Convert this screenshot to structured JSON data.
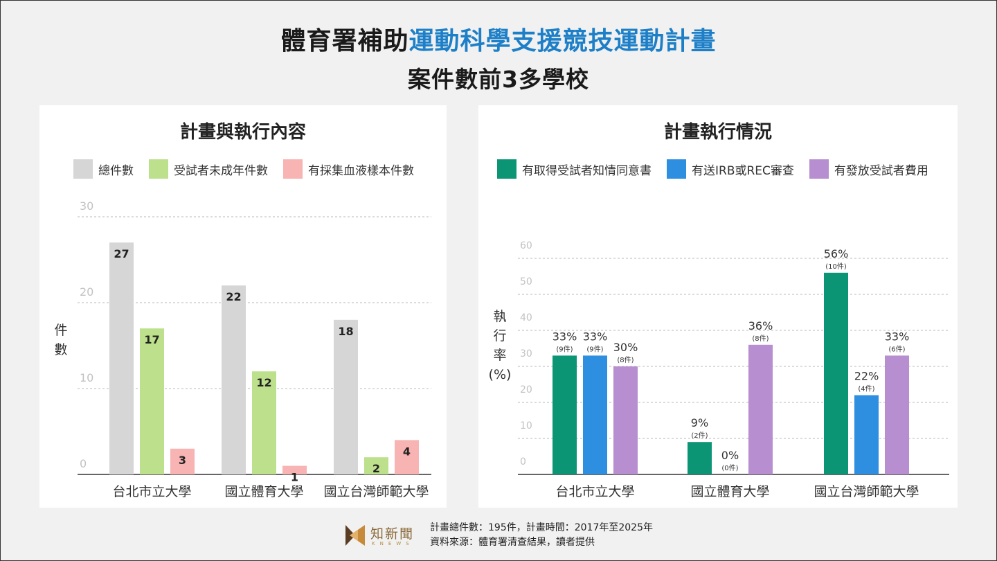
{
  "title": {
    "line1_a": "體育署補助",
    "line1_b": "運動科學支援競技運動計畫",
    "line2": "案件數前3多學校"
  },
  "colors": {
    "highlight": "#1d7fc7",
    "total": "#d6d6d6",
    "minor": "#bde08c",
    "blood": "#f8b3b3",
    "consent": "#0b9575",
    "irb": "#2e8ee0",
    "fee": "#b78ecf"
  },
  "chart_data": [
    {
      "type": "bar",
      "title": "計畫與執行內容",
      "ylabel": "件數",
      "ylim": [
        0,
        30
      ],
      "yticks": [
        0,
        10,
        20,
        30
      ],
      "grid": true,
      "legend_position": "top",
      "categories": [
        "台北市立大學",
        "國立體育大學",
        "國立台灣師範大學"
      ],
      "series": [
        {
          "name": "總件數",
          "color": "#d6d6d6",
          "values": [
            27,
            22,
            18
          ],
          "labels": [
            "27",
            "22",
            "18"
          ]
        },
        {
          "name": "受試者未成年件數",
          "color": "#bde08c",
          "values": [
            17,
            12,
            2
          ],
          "labels": [
            "17",
            "12",
            "2"
          ]
        },
        {
          "name": "有採集血液樣本件數",
          "color": "#f8b3b3",
          "values": [
            3,
            1,
            4
          ],
          "labels": [
            "3",
            "1",
            "4"
          ]
        }
      ]
    },
    {
      "type": "bar",
      "title": "計畫執行情況",
      "ylabel": "執行率(%)",
      "ylim": [
        0,
        60
      ],
      "yticks": [
        0,
        10,
        20,
        30,
        40,
        50,
        60
      ],
      "grid": true,
      "legend_position": "top",
      "categories": [
        "台北市立大學",
        "國立體育大學",
        "國立台灣師範大學"
      ],
      "series": [
        {
          "name": "有取得受試者知情同意書",
          "color": "#0b9575",
          "values": [
            33,
            9,
            56
          ],
          "labels": [
            "33%",
            "9%",
            "56%"
          ],
          "sublabels": [
            "(9件)",
            "(2件)",
            "(10件)"
          ]
        },
        {
          "name": "有送IRB或REC審查",
          "color": "#2e8ee0",
          "values": [
            33,
            0,
            22
          ],
          "labels": [
            "33%",
            "0%",
            "22%"
          ],
          "sublabels": [
            "(9件)",
            "(0件)",
            "(4件)"
          ]
        },
        {
          "name": "有發放受試者費用",
          "color": "#b78ecf",
          "values": [
            30,
            36,
            33
          ],
          "labels": [
            "30%",
            "36%",
            "33%"
          ],
          "sublabels": [
            "(8件)",
            "(8件)",
            "(6件)"
          ]
        }
      ]
    }
  ],
  "left_ylabel_chars": [
    "件",
    "數"
  ],
  "right_ylabel_chars": [
    "執",
    "行",
    "率",
    "(%)"
  ],
  "footer": {
    "logo_cn": "知新聞",
    "logo_en": "KNEWS",
    "note1": "計畫總件數：195件，計畫時間：2017年至2025年",
    "note2": "資料來源：體育署清查結果，讀者提供"
  }
}
